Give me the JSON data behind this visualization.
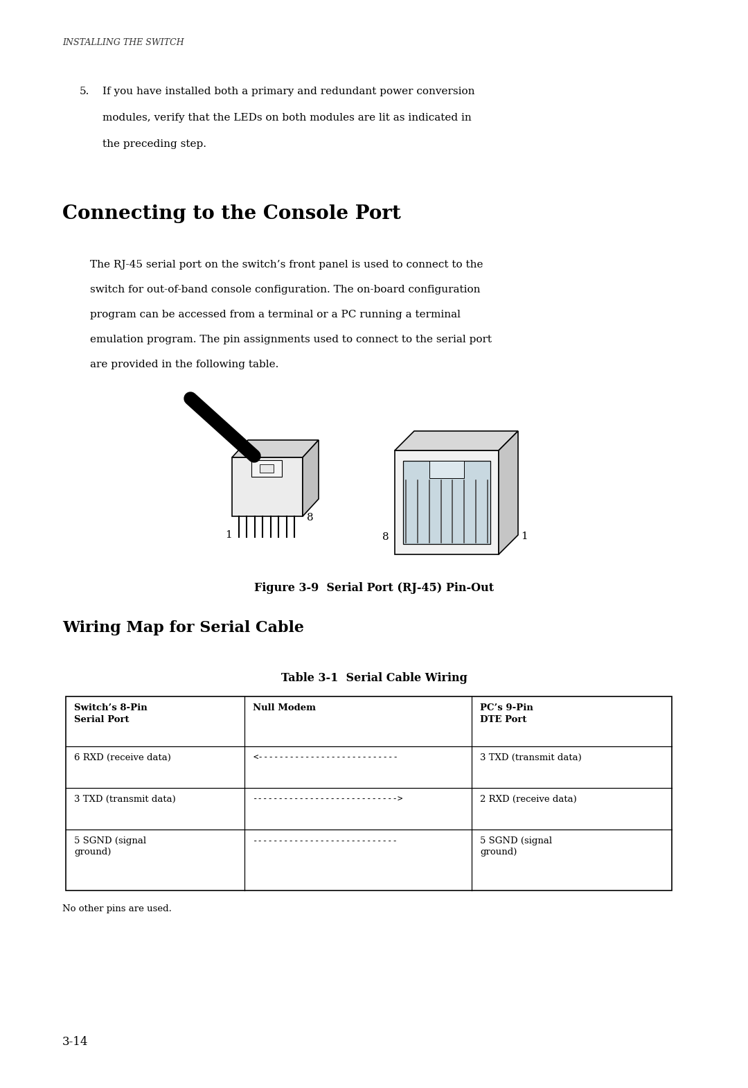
{
  "bg_color": "#ffffff",
  "header_text": "INSTALLING THE SWITCH",
  "step5_num": "5.",
  "step5_line1": "If you have installed both a primary and redundant power conversion",
  "step5_line2": "modules, verify that the LEDs on both modules are lit as indicated in",
  "step5_line3": "the preceding step.",
  "section_title": "Connecting to the Console Port",
  "body_lines": [
    "The RJ-45 serial port on the switch’s front panel is used to connect to the",
    "switch for out-of-band console configuration. The on-board configuration",
    "program can be accessed from a terminal or a PC running a terminal",
    "emulation program. The pin assignments used to connect to the serial port",
    "are provided in the following table."
  ],
  "figure_caption": "Figure 3-9  Serial Port (RJ-45) Pin-Out",
  "subsection_title": "Wiring Map for Serial Cable",
  "table_title": "Table 3-1  Serial Cable Wiring",
  "table_headers": [
    "Switch’s 8-Pin\nSerial Port",
    "Null Modem",
    "PC’s 9-Pin\nDTE Port"
  ],
  "table_rows": [
    [
      "6 RXD (receive data)",
      "<---------------------------",
      "3 TXD (transmit data)"
    ],
    [
      "3 TXD (transmit data)",
      "---------------------------->",
      "2 RXD (receive data)"
    ],
    [
      "5 SGND (signal\nground)",
      "----------------------------",
      "5 SGND (signal\nground)"
    ]
  ],
  "footer_note": "No other pins are used.",
  "page_number": "3-14",
  "text_color": "#000000",
  "table_border_color": "#000000"
}
